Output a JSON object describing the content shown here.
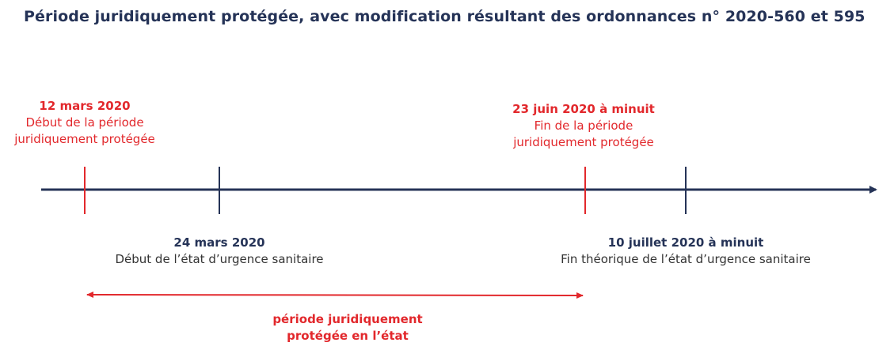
{
  "title": "Période juridiquement protégée, avec modification résultant des ordonnances n° 2020-560 et 595",
  "colors": {
    "navy": "#253357",
    "red": "#e2282c",
    "gray_text": "#333333"
  },
  "events": [
    {
      "id": "start-protected",
      "date": "12 mars 2020",
      "description_line1": "Début de la période",
      "description_line2": "juridiquement protégée",
      "color": "red",
      "position": "above"
    },
    {
      "id": "start-emergency",
      "date": "24 mars 2020",
      "description_line1": "Début de l’état d’urgence sanitaire",
      "color": "navy",
      "position": "below"
    },
    {
      "id": "end-protected",
      "date": "23 juin 2020 à minuit",
      "description_line1": "Fin de la période",
      "description_line2": "juridiquement protégée",
      "color": "red",
      "position": "above"
    },
    {
      "id": "end-emergency",
      "date": "10 juillet 2020 à minuit",
      "description_line1": "Fin théorique de l’état d’urgence sanitaire",
      "color": "navy",
      "position": "below"
    }
  ],
  "period": {
    "line1": "période juridiquement",
    "line2": "protégée en l’état"
  }
}
